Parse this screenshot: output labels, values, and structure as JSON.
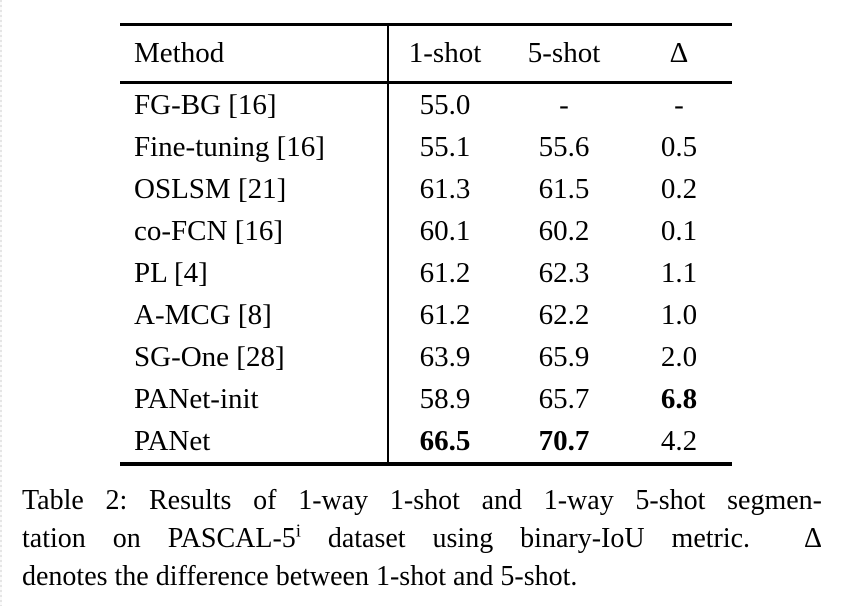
{
  "table": {
    "columns": [
      "Method",
      "1-shot",
      "5-shot",
      "Δ"
    ],
    "rows": [
      {
        "method": "FG-BG [16]",
        "values": [
          "55.0",
          "-",
          "-"
        ],
        "bold": [
          false,
          false,
          false
        ]
      },
      {
        "method": "Fine-tuning [16]",
        "values": [
          "55.1",
          "55.6",
          "0.5"
        ],
        "bold": [
          false,
          false,
          false
        ]
      },
      {
        "method": "OSLSM [21]",
        "values": [
          "61.3",
          "61.5",
          "0.2"
        ],
        "bold": [
          false,
          false,
          false
        ]
      },
      {
        "method": "co-FCN [16]",
        "values": [
          "60.1",
          "60.2",
          "0.1"
        ],
        "bold": [
          false,
          false,
          false
        ]
      },
      {
        "method": "PL [4]",
        "values": [
          "61.2",
          "62.3",
          "1.1"
        ],
        "bold": [
          false,
          false,
          false
        ]
      },
      {
        "method": "A-MCG [8]",
        "values": [
          "61.2",
          "62.2",
          "1.0"
        ],
        "bold": [
          false,
          false,
          false
        ]
      },
      {
        "method": "SG-One [28]",
        "values": [
          "63.9",
          "65.9",
          "2.0"
        ],
        "bold": [
          false,
          false,
          false
        ]
      },
      {
        "method": "PANet-init",
        "values": [
          "58.9",
          "65.7",
          "6.8"
        ],
        "bold": [
          false,
          false,
          true
        ]
      },
      {
        "method": "PANet",
        "values": [
          "66.5",
          "70.7",
          "4.2"
        ],
        "bold": [
          true,
          true,
          false
        ]
      }
    ]
  },
  "caption": {
    "line1": "Table 2: Results of 1-way 1-shot and 1-way 5-shot segmen-",
    "line2_pre": "tation on PASCAL-5",
    "line2_sup": "i",
    "line2_post": " dataset using binary-IoU metric.  Δ",
    "line3": "denotes the difference between 1-shot and 5-shot."
  }
}
